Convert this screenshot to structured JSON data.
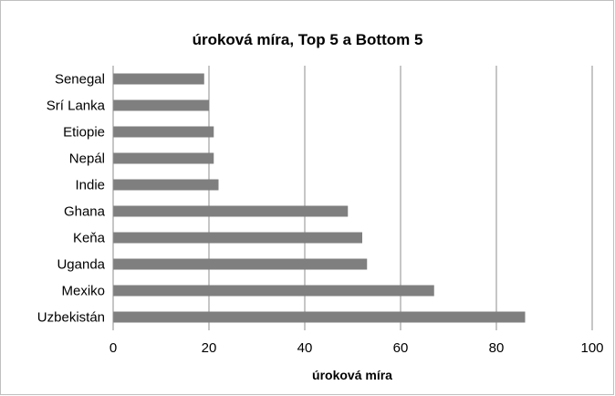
{
  "chart_data": {
    "type": "bar",
    "orientation": "horizontal",
    "title": "úroková míra, Top 5 a Bottom 5",
    "xlabel": "úroková míra",
    "ylabel": "",
    "categories": [
      "Senegal",
      "Srí Lanka",
      "Etiopie",
      "Nepál",
      "Indie",
      "Ghana",
      "Keňa",
      "Uganda",
      "Mexiko",
      "Uzbekistán"
    ],
    "values": [
      19,
      20,
      21,
      21,
      22,
      49,
      52,
      53,
      67,
      86
    ],
    "xlim": [
      0,
      100
    ],
    "xticks": [
      0,
      20,
      40,
      60,
      80,
      100
    ],
    "xtick_labels": [
      "0",
      "20",
      "40",
      "60",
      "80",
      "100"
    ],
    "grid": true,
    "legend": "none",
    "bar_color": "#7f7f7f",
    "grid_color": "#8c8c8c"
  }
}
